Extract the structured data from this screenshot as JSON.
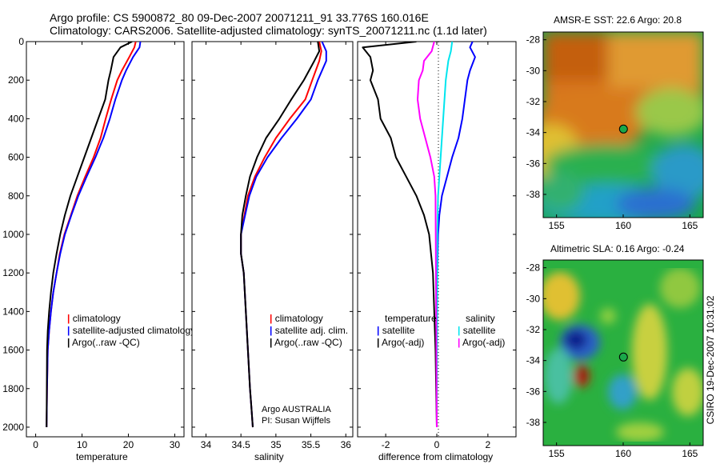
{
  "header": {
    "line1": "Argo profile: CS 5900872_80 09-Dec-2007 20071211_91 33.776S 160.016E",
    "line2": "Climatology: CARS2006. Satellite-adjusted climatology: synTS_20071211.nc (1.1d later)"
  },
  "footer": {
    "agency": "Argo AUSTRALIA",
    "pi": "PI: Susan Wijffels",
    "stamp": "CSIRO 19-Dec-2007 10:31:02"
  },
  "colors": {
    "climatology": "#ff0000",
    "satellite": "#0000ff",
    "argo": "#000000",
    "satellite_salinity_diff": "#00e5ee",
    "argo_salinity_diff": "#ff00ff"
  },
  "chart_data": [
    {
      "type": "line",
      "name": "temperature-profile",
      "xlabel": "temperature",
      "ylabel": "",
      "xlim": [
        -2,
        32
      ],
      "ylim": [
        2050,
        0
      ],
      "xticks": [
        0,
        10,
        20,
        30
      ],
      "yticks": [
        0,
        200,
        400,
        600,
        800,
        1000,
        1200,
        1400,
        1600,
        1800,
        2000
      ],
      "legend": [
        "climatology",
        "satellite-adjusted climatology",
        "Argo(..raw -QC)"
      ],
      "legend_placement": "lower-right",
      "series": [
        {
          "name": "climatology",
          "color": "#ff0000",
          "x": [
            21.6,
            21.3,
            20.2,
            18.6,
            17.6,
            16.3,
            15.1,
            14.0,
            12.5,
            10.7,
            9.0,
            7.6,
            6.2,
            5.2,
            4.5,
            3.8,
            3.3,
            2.9,
            2.6,
            2.45,
            2.35
          ],
          "y": [
            0,
            30,
            80,
            150,
            200,
            300,
            400,
            500,
            600,
            700,
            800,
            900,
            1000,
            1100,
            1200,
            1300,
            1400,
            1500,
            1600,
            1800,
            2000
          ]
        },
        {
          "name": "satellite-adjusted climatology",
          "color": "#0000ff",
          "x": [
            22.6,
            22.4,
            21.0,
            19.5,
            18.6,
            17.2,
            16.0,
            14.6,
            12.9,
            11.0,
            9.2,
            7.7,
            6.3,
            5.3,
            4.5,
            3.8,
            3.3,
            2.9,
            2.6,
            2.45,
            2.35
          ],
          "y": [
            0,
            30,
            80,
            150,
            200,
            300,
            400,
            500,
            600,
            700,
            800,
            900,
            1000,
            1100,
            1200,
            1300,
            1400,
            1500,
            1600,
            1800,
            2000
          ]
        },
        {
          "name": "Argo(..raw -QC)",
          "color": "#000000",
          "x": [
            20.8,
            18.3,
            16.8,
            16.2,
            15.7,
            15.0,
            13.5,
            12.0,
            10.5,
            9.0,
            7.5,
            6.3,
            5.3,
            4.5,
            3.8,
            3.3,
            2.9,
            2.6,
            2.45,
            2.35
          ],
          "y": [
            0,
            30,
            80,
            150,
            200,
            300,
            400,
            500,
            600,
            700,
            800,
            900,
            1000,
            1100,
            1200,
            1300,
            1400,
            1500,
            1600,
            2000
          ]
        }
      ]
    },
    {
      "type": "line",
      "name": "salinity-profile",
      "xlabel": "salinity",
      "ylabel": "",
      "xlim": [
        33.8,
        36.1
      ],
      "ylim": [
        2050,
        0
      ],
      "xticks": [
        34,
        34.5,
        35,
        35.5,
        36
      ],
      "legend": [
        "climatology",
        "satellite adj. clim.",
        "Argo(..raw -QC)"
      ],
      "legend_placement": "lower-right",
      "series": [
        {
          "name": "climatology",
          "color": "#ff0000",
          "x": [
            35.62,
            35.65,
            35.62,
            35.52,
            35.42,
            35.2,
            35.0,
            34.84,
            34.7,
            34.6,
            34.55,
            34.5,
            34.5,
            34.54,
            34.57,
            34.6,
            34.63,
            34.65,
            34.67
          ],
          "y": [
            0,
            50,
            100,
            200,
            300,
            400,
            500,
            600,
            700,
            800,
            900,
            1000,
            1100,
            1200,
            1400,
            1600,
            1800,
            1900,
            2000
          ]
        },
        {
          "name": "satellite adj. clim.",
          "color": "#0000ff",
          "x": [
            35.66,
            35.72,
            35.72,
            35.6,
            35.5,
            35.3,
            35.08,
            34.88,
            34.72,
            34.62,
            34.56,
            34.5,
            34.5,
            34.54,
            34.57,
            34.6,
            34.63,
            34.65,
            34.67
          ],
          "y": [
            0,
            50,
            100,
            200,
            300,
            400,
            500,
            600,
            700,
            800,
            900,
            1000,
            1100,
            1200,
            1400,
            1600,
            1800,
            1900,
            2000
          ]
        },
        {
          "name": "Argo(..raw -QC)",
          "color": "#000000",
          "x": [
            35.6,
            35.62,
            35.55,
            35.4,
            35.22,
            35.05,
            34.86,
            34.73,
            34.63,
            34.57,
            34.52,
            34.5,
            34.5,
            34.54,
            34.57,
            34.6,
            34.63,
            34.65,
            34.67
          ],
          "y": [
            0,
            50,
            100,
            200,
            300,
            400,
            500,
            600,
            700,
            800,
            900,
            1000,
            1100,
            1200,
            1400,
            1600,
            1800,
            1900,
            2000
          ]
        }
      ]
    },
    {
      "type": "line",
      "name": "difference-profile",
      "xlabel": "difference from climatology",
      "ylabel": "",
      "xlim": [
        -3.1,
        3.1
      ],
      "ylim": [
        2050,
        0
      ],
      "xticks": [
        -2,
        0,
        2
      ],
      "legend": [
        "temperature satellite",
        "temperature Argo(-adj)",
        "salinity satellite",
        "salinity Argo(-adj)"
      ],
      "legend_headers": [
        "temperature",
        "salinity"
      ],
      "legend_labels": [
        "satellite",
        "Argo(-adj)",
        "satellite",
        "Argo(-adj)"
      ],
      "legend_placement": "lower-center",
      "series": [
        {
          "name": "temperature satellite",
          "color": "#0000ff",
          "x": [
            1.4,
            1.3,
            1.5,
            1.3,
            1.2,
            1.1,
            1.0,
            0.85,
            0.6,
            0.4,
            0.2,
            0.1,
            0.05,
            0.02,
            0.0,
            0.0
          ],
          "y": [
            0,
            30,
            80,
            150,
            200,
            300,
            400,
            500,
            600,
            700,
            800,
            900,
            1000,
            1200,
            1600,
            2000
          ]
        },
        {
          "name": "temperature Argo(-adj)",
          "color": "#000000",
          "x": [
            -0.8,
            -2.9,
            -2.6,
            -2.5,
            -2.6,
            -2.3,
            -2.2,
            -1.8,
            -1.6,
            -1.2,
            -0.8,
            -0.5,
            -0.3,
            -0.15,
            -0.05,
            0.0
          ],
          "y": [
            0,
            30,
            80,
            150,
            200,
            300,
            400,
            500,
            600,
            700,
            800,
            900,
            1000,
            1200,
            1600,
            2000
          ]
        },
        {
          "name": "salinity satellite",
          "color": "#00e5ee",
          "x": [
            0.6,
            0.55,
            0.45,
            0.4,
            0.35,
            0.3,
            0.25,
            0.2,
            0.15,
            0.1,
            0.05,
            0.02,
            0.0
          ],
          "y": [
            0,
            50,
            100,
            150,
            200,
            300,
            400,
            500,
            600,
            700,
            800,
            1000,
            2000
          ]
        },
        {
          "name": "salinity Argo(-adj)",
          "color": "#ff00ff",
          "x": [
            -0.1,
            -0.2,
            -0.5,
            -0.55,
            -0.7,
            -0.75,
            -0.65,
            -0.45,
            -0.25,
            -0.1,
            -0.05,
            0.0
          ],
          "y": [
            0,
            50,
            100,
            150,
            200,
            300,
            400,
            500,
            600,
            700,
            800,
            2000
          ]
        }
      ]
    },
    {
      "type": "heatmap",
      "name": "sst-map",
      "title": "AMSR-E SST: 22.6 Argo: 20.8",
      "xlim": [
        154,
        166
      ],
      "ylim": [
        -39.5,
        -27.5
      ],
      "xticks": [
        155,
        160,
        165
      ],
      "yticks": [
        -28,
        -30,
        -32,
        -34,
        -36,
        -38
      ],
      "argo_position": {
        "lon": 160.016,
        "lat": -33.776
      }
    },
    {
      "type": "heatmap",
      "name": "sla-map",
      "title": "Altimetric SLA: 0.16 Argo: -0.24",
      "xlim": [
        154,
        166
      ],
      "ylim": [
        -39.5,
        -27.5
      ],
      "xticks": [
        155,
        160,
        165
      ],
      "yticks": [
        -28,
        -30,
        -32,
        -34,
        -36,
        -38
      ],
      "argo_position": {
        "lon": 160.016,
        "lat": -33.776
      }
    }
  ]
}
